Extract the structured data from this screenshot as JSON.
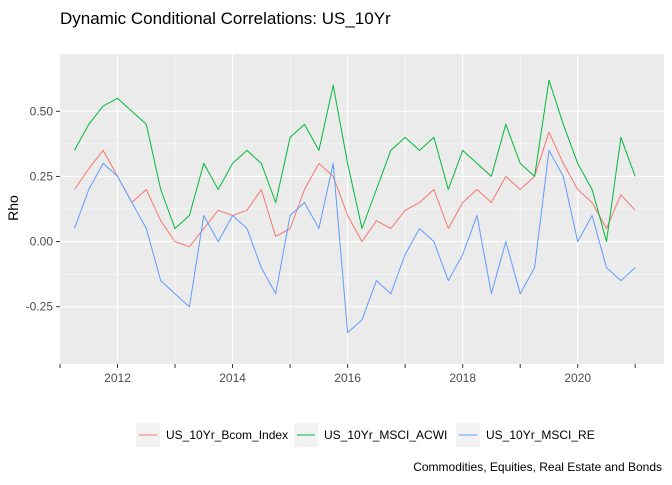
{
  "chart_data": {
    "type": "line",
    "title": "Dynamic Conditional Correlations: US_10Yr",
    "xlabel": "",
    "ylabel": "Rho",
    "caption": "Commodities, Equities, Real Estate and Bonds",
    "x_unit": "year",
    "xlim": [
      2011.0,
      2021.5
    ],
    "ylim": [
      -0.47,
      0.72
    ],
    "x_ticks": [
      2012,
      2014,
      2016,
      2018,
      2020
    ],
    "x_tick_labels": [
      "2012",
      "2014",
      "2016",
      "2018",
      "2020"
    ],
    "y_ticks": [
      -0.25,
      0,
      0.25,
      0.5
    ],
    "y_tick_labels": [
      "-0.25",
      "0.00",
      "0.25",
      "0.50"
    ],
    "grid": true,
    "legend_position": "bottom",
    "panel_background": "#EBEBEB",
    "grid_color": "#FFFFFF",
    "series": [
      {
        "name": "US_10Yr_Bcom_Index",
        "color": "#F8766D",
        "x": [
          2011.25,
          2011.5,
          2011.75,
          2012.0,
          2012.25,
          2012.5,
          2012.75,
          2013.0,
          2013.25,
          2013.5,
          2013.75,
          2014.0,
          2014.25,
          2014.5,
          2014.75,
          2015.0,
          2015.25,
          2015.5,
          2015.75,
          2016.0,
          2016.25,
          2016.5,
          2016.75,
          2017.0,
          2017.25,
          2017.5,
          2017.75,
          2018.0,
          2018.25,
          2018.5,
          2018.75,
          2019.0,
          2019.25,
          2019.5,
          2019.75,
          2020.0,
          2020.25,
          2020.5,
          2020.75,
          2021.0
        ],
        "values": [
          0.2,
          0.28,
          0.35,
          0.25,
          0.15,
          0.2,
          0.08,
          0.0,
          -0.02,
          0.05,
          0.12,
          0.1,
          0.12,
          0.2,
          0.02,
          0.05,
          0.2,
          0.3,
          0.25,
          0.1,
          0.0,
          0.08,
          0.05,
          0.12,
          0.15,
          0.2,
          0.05,
          0.15,
          0.2,
          0.15,
          0.25,
          0.2,
          0.25,
          0.42,
          0.3,
          0.2,
          0.15,
          0.05,
          0.18,
          0.12
        ]
      },
      {
        "name": "US_10Yr_MSCI_ACWI",
        "color": "#00BA38",
        "x": [
          2011.25,
          2011.5,
          2011.75,
          2012.0,
          2012.25,
          2012.5,
          2012.75,
          2013.0,
          2013.25,
          2013.5,
          2013.75,
          2014.0,
          2014.25,
          2014.5,
          2014.75,
          2015.0,
          2015.25,
          2015.5,
          2015.75,
          2016.0,
          2016.25,
          2016.5,
          2016.75,
          2017.0,
          2017.25,
          2017.5,
          2017.75,
          2018.0,
          2018.25,
          2018.5,
          2018.75,
          2019.0,
          2019.25,
          2019.5,
          2019.75,
          2020.0,
          2020.25,
          2020.5,
          2020.75,
          2021.0
        ],
        "values": [
          0.35,
          0.45,
          0.52,
          0.55,
          0.5,
          0.45,
          0.2,
          0.05,
          0.1,
          0.3,
          0.2,
          0.3,
          0.35,
          0.3,
          0.15,
          0.4,
          0.45,
          0.35,
          0.6,
          0.3,
          0.05,
          0.2,
          0.35,
          0.4,
          0.35,
          0.4,
          0.2,
          0.35,
          0.3,
          0.25,
          0.45,
          0.3,
          0.25,
          0.62,
          0.45,
          0.3,
          0.2,
          0.0,
          0.4,
          0.25
        ]
      },
      {
        "name": "US_10Yr_MSCI_RE",
        "color": "#619CFF",
        "x": [
          2011.25,
          2011.5,
          2011.75,
          2012.0,
          2012.25,
          2012.5,
          2012.75,
          2013.0,
          2013.25,
          2013.5,
          2013.75,
          2014.0,
          2014.25,
          2014.5,
          2014.75,
          2015.0,
          2015.25,
          2015.5,
          2015.75,
          2016.0,
          2016.25,
          2016.5,
          2016.75,
          2017.0,
          2017.25,
          2017.5,
          2017.75,
          2018.0,
          2018.25,
          2018.5,
          2018.75,
          2019.0,
          2019.25,
          2019.5,
          2019.75,
          2020.0,
          2020.25,
          2020.5,
          2020.75,
          2021.0
        ],
        "values": [
          0.05,
          0.2,
          0.3,
          0.25,
          0.15,
          0.05,
          -0.15,
          -0.2,
          -0.25,
          0.1,
          0.0,
          0.1,
          0.05,
          -0.1,
          -0.2,
          0.1,
          0.15,
          0.05,
          0.3,
          -0.35,
          -0.3,
          -0.15,
          -0.2,
          -0.05,
          0.05,
          0.0,
          -0.15,
          -0.05,
          0.1,
          -0.2,
          0.0,
          -0.2,
          -0.1,
          0.35,
          0.25,
          0.0,
          0.1,
          -0.1,
          -0.15,
          -0.1
        ]
      }
    ]
  }
}
